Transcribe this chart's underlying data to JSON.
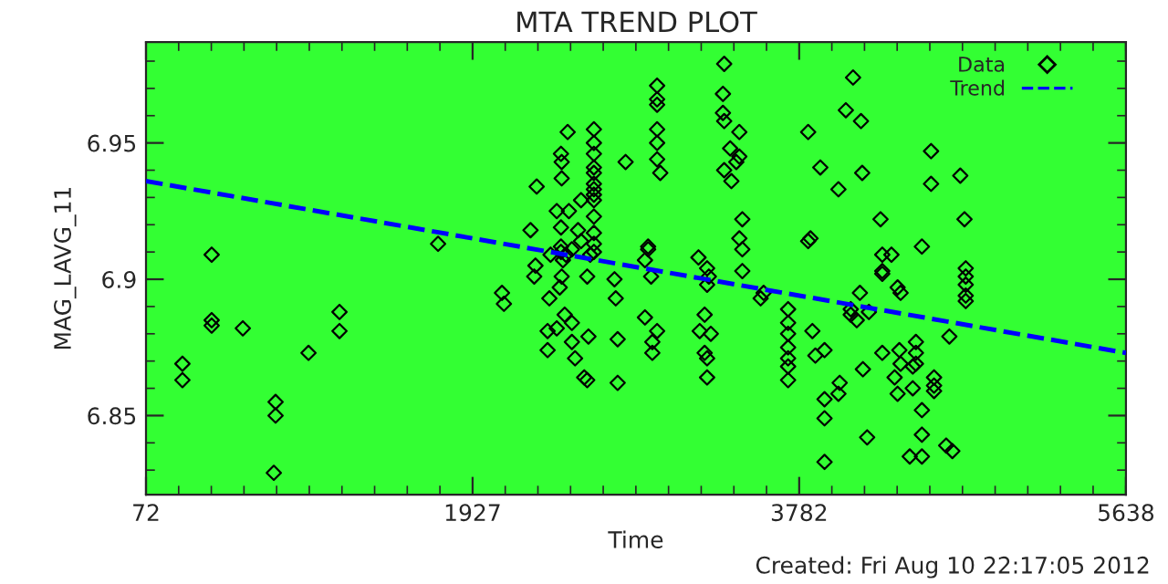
{
  "chart_data": {
    "type": "scatter",
    "title": "MTA TREND PLOT",
    "xlabel": "Time",
    "ylabel": "MAG_LAVG_11",
    "annotations": [
      "Created: Fri Aug 10 22:17:05 2012"
    ],
    "xlim": [
      72,
      5638
    ],
    "xticks": [
      72,
      1927,
      3782,
      5638
    ],
    "ylim": [
      6.821,
      6.987
    ],
    "yticks": [
      6.85,
      6.9,
      6.95
    ],
    "grid": false,
    "legend": "top right",
    "series": [
      {
        "name": "Data",
        "marker": "diamond",
        "color": "#000000",
        "x": [
          279,
          279,
          445,
          445,
          445,
          622,
          808,
          808,
          798,
          995,
          1171,
          1171,
          1731,
          2094,
          2105,
          2433,
          2433,
          2405,
          2429,
          2429,
          2429,
          2440,
          2433,
          2422,
          2363,
          2353,
          2353,
          2450,
          2491,
          2405,
          2474,
          2491,
          2457,
          2429,
          2291,
          2256,
          2284,
          2277,
          2370,
          2467,
          2616,
          2616,
          2616,
          2616,
          2616,
          2616,
          2616,
          2616,
          2616,
          2616,
          2616,
          2616,
          2616,
          2796,
          2733,
          2740,
          2751,
          2751,
          2906,
          2975,
          2948,
          2948,
          2561,
          2578,
          2491,
          2509,
          2585,
          2578,
          2595,
          2543,
          2526,
          2543,
          2924,
          2924,
          2906,
          2941,
          2975,
          2975,
          2975,
          2975,
          2975,
          2975,
          2993,
          3356,
          3349,
          3349,
          3356,
          3442,
          3390,
          3442,
          3425,
          3356,
          3397,
          3459,
          3442,
          3459,
          3459,
          3210,
          3259,
          3269,
          3259,
          3245,
          3217,
          3280,
          3245,
          3259,
          3259,
          3580,
          3563,
          3719,
          3719,
          3719,
          3719,
          3719,
          3719,
          3719,
          4088,
          4047,
          4133,
          3833,
          3902,
          4140,
          4005,
          4531,
          4531,
          4697,
          4244,
          4721,
          3846,
          3833,
          4479,
          4254,
          4306,
          4254,
          4254,
          4341,
          4358,
          4728,
          4728,
          4728,
          4728,
          4728,
          4127,
          4075,
          4075,
          4109,
          4178,
          3857,
          3874,
          3926,
          4144,
          4254,
          4351,
          4358,
          4445,
          4445,
          4445,
          4427,
          4635,
          4324,
          4341,
          4548,
          4548,
          4548,
          4012,
          4005,
          3926,
          4479,
          3926,
          4168,
          4479,
          4410,
          4479,
          4617,
          4652,
          3926,
          4427
        ],
        "values": [
          6.869,
          6.863,
          6.909,
          6.885,
          6.883,
          6.882,
          6.855,
          6.85,
          6.829,
          6.873,
          6.888,
          6.881,
          6.913,
          6.895,
          6.891,
          6.943,
          6.937,
          6.925,
          6.919,
          6.912,
          6.91,
          6.907,
          6.901,
          6.897,
          6.893,
          6.881,
          6.874,
          6.887,
          6.884,
          6.882,
          6.925,
          6.911,
          6.909,
          6.946,
          6.934,
          6.918,
          6.905,
          6.901,
          6.909,
          6.954,
          6.955,
          6.95,
          6.946,
          6.941,
          6.939,
          6.935,
          6.933,
          6.931,
          6.929,
          6.923,
          6.917,
          6.913,
          6.91,
          6.943,
          6.9,
          6.893,
          6.878,
          6.862,
          6.886,
          6.881,
          6.877,
          6.873,
          6.864,
          6.863,
          6.877,
          6.871,
          6.879,
          6.901,
          6.909,
          6.914,
          6.918,
          6.929,
          6.912,
          6.911,
          6.907,
          6.901,
          6.971,
          6.966,
          6.964,
          6.955,
          6.95,
          6.944,
          6.939,
          6.979,
          6.968,
          6.961,
          6.958,
          6.954,
          6.948,
          6.945,
          6.943,
          6.94,
          6.936,
          6.922,
          6.915,
          6.911,
          6.903,
          6.908,
          6.904,
          6.901,
          6.898,
          6.887,
          6.881,
          6.88,
          6.873,
          6.871,
          6.864,
          6.895,
          6.893,
          6.889,
          6.884,
          6.88,
          6.875,
          6.871,
          6.868,
          6.863,
          6.974,
          6.962,
          6.958,
          6.954,
          6.941,
          6.939,
          6.933,
          6.947,
          6.935,
          6.938,
          6.922,
          6.922,
          6.915,
          6.914,
          6.912,
          6.909,
          6.909,
          6.903,
          6.902,
          6.897,
          6.895,
          6.904,
          6.901,
          6.898,
          6.894,
          6.892,
          6.895,
          6.889,
          6.887,
          6.885,
          6.888,
          6.881,
          6.872,
          6.874,
          6.867,
          6.873,
          6.874,
          6.869,
          6.877,
          6.873,
          6.869,
          6.868,
          6.879,
          6.864,
          6.858,
          6.864,
          6.861,
          6.859,
          6.862,
          6.858,
          6.856,
          6.852,
          6.849,
          6.842,
          6.843,
          6.835,
          6.835,
          6.839,
          6.837,
          6.833,
          6.86
        ]
      },
      {
        "name": "Trend",
        "type": "line",
        "line_style": "dashed",
        "color": "#0000ff",
        "x": [
          72,
          5638
        ],
        "values": [
          6.936,
          6.873
        ]
      }
    ]
  }
}
